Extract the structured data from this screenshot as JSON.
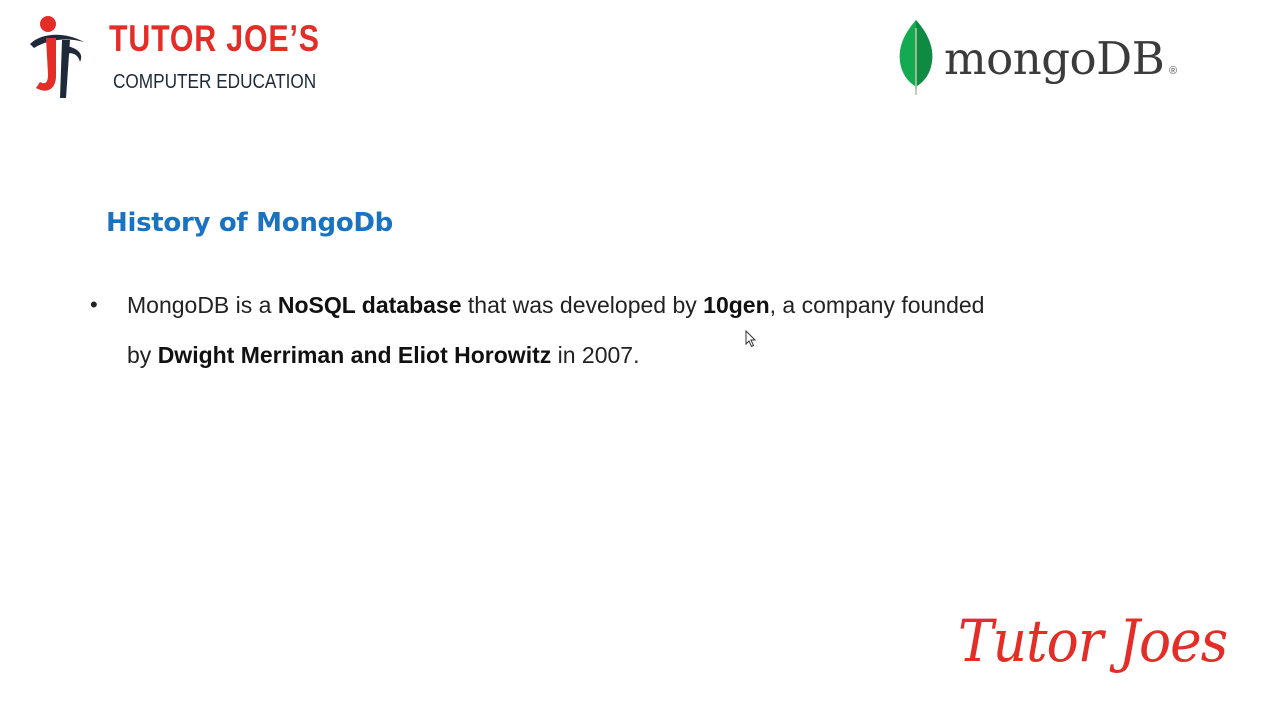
{
  "brand": {
    "name": "TUTOR JOE’S",
    "subtitle": "COMPUTER EDUCATION",
    "colors": {
      "accent": "#e52d27",
      "dark": "#1e2a3a"
    }
  },
  "partner_logo": {
    "wordmark": "mongoDB",
    "registered": "®",
    "leaf_color": "#13aa52"
  },
  "slide": {
    "heading": "History of MongoDb",
    "heading_color": "#1a73c1",
    "bullets": [
      {
        "segments": [
          {
            "text": "MongoDB is a ",
            "bold": false
          },
          {
            "text": "NoSQL database",
            "bold": true
          },
          {
            "text": " that was developed by ",
            "bold": false
          },
          {
            "text": "10gen",
            "bold": true
          },
          {
            "text": ", a company founded by ",
            "bold": false
          },
          {
            "text": "Dwight Merriman and Eliot Horowitz",
            "bold": true
          },
          {
            "text": " in 2007.",
            "bold": false
          }
        ]
      }
    ]
  },
  "signature": {
    "text": "Tutor Joes"
  },
  "icons": {
    "brand_logo": "tutor-joes-figure-icon",
    "partner_leaf": "mongodb-leaf-icon",
    "cursor": "mouse-cursor-icon",
    "bullet": "bullet-icon"
  }
}
